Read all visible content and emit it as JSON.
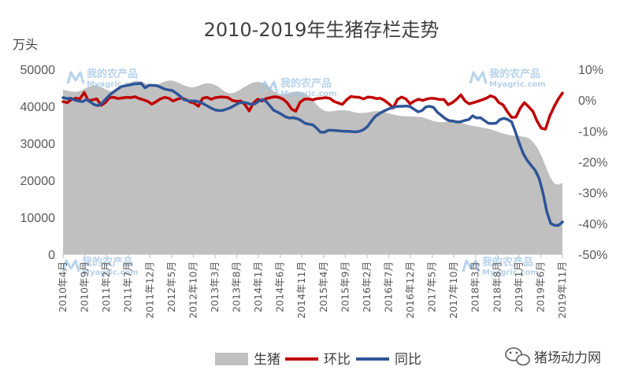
{
  "chart_data": {
    "type": "area+line",
    "title": "2010-2019年生猪存栏走势",
    "y_left_unit": "万头",
    "y_left": {
      "min": 0,
      "max": 50000,
      "ticks": [
        "0",
        "10000",
        "20000",
        "30000",
        "40000",
        "50000"
      ]
    },
    "y_right": {
      "min": -50,
      "max": 10,
      "ticks": [
        "10%",
        "0%",
        "-10%",
        "-20%",
        "-30%",
        "-40%",
        "-50%"
      ]
    },
    "x_labels": [
      "2010年4月",
      "2010年9月",
      "2011年2月",
      "2011年7月",
      "2011年12月",
      "2012年5月",
      "2012年10月",
      "2013年3月",
      "2013年8月",
      "2014年1月",
      "2014年6月",
      "2014年11月",
      "2015年4月",
      "2015年9月",
      "2016年2月",
      "2016年7月",
      "2016年12月",
      "2017年5月",
      "2017年10月",
      "2018年3月",
      "2018年8月",
      "2019年1月",
      "2019年6月",
      "2019年11月"
    ],
    "series": [
      {
        "name": "生猪",
        "axis": "left",
        "color": "#c0c0c0",
        "values": [
          44500,
          44200,
          44000,
          43900,
          44100,
          44600,
          45200,
          45600,
          45700,
          45300,
          44700,
          44200,
          44000,
          44200,
          44800,
          45500,
          46300,
          46800,
          46900,
          46600,
          46100,
          45800,
          45700,
          46000,
          46500,
          46900,
          47000,
          46700,
          46200,
          45700,
          45300,
          45100,
          45300,
          45700,
          46100,
          46200,
          46000,
          45500,
          44700,
          43900,
          43500,
          43600,
          44100,
          44800,
          45500,
          46100,
          46500,
          46600,
          46300,
          45600,
          44700,
          43800,
          43300,
          43200,
          43400,
          43800,
          44000,
          43900,
          43500,
          42800,
          41700,
          40400,
          39300,
          38700,
          38600,
          38700,
          38900,
          39000,
          38900,
          38700,
          38400,
          38200,
          38200,
          38300,
          38500,
          38700,
          38700,
          38500,
          38200,
          37900,
          37600,
          37400,
          37300,
          37300,
          37300,
          37200,
          37100,
          36800,
          36400,
          36000,
          35800,
          35700,
          35800,
          35900,
          35900,
          35700,
          35400,
          35100,
          34800,
          34600,
          34400,
          34200,
          34000,
          33700,
          33300,
          32900,
          32600,
          32300,
          32100,
          32000,
          31900,
          31700,
          31300,
          30300,
          28700,
          26500,
          23700,
          21000,
          19200,
          18800,
          19300
        ]
      },
      {
        "name": "环比",
        "axis": "right",
        "color": "#c00000",
        "values": [
          -0.5,
          -0.8,
          0.2,
          0.6,
          0.4,
          2.5,
          -0.2,
          0.1,
          0.4,
          -1.7,
          -0.8,
          0.8,
          0.9,
          0.5,
          0.7,
          0.9,
          0.8,
          1.1,
          0.5,
          0.1,
          -0.4,
          -1.3,
          -0.5,
          0.4,
          0.9,
          0.6,
          -0.3,
          0.3,
          0.7,
          0.2,
          -0.6,
          -1.0,
          -2.0,
          0.6,
          0.9,
          0.3,
          0.8,
          1.0,
          1.0,
          0.8,
          -0.1,
          -0.4,
          -0.3,
          -1.5,
          -3.5,
          -0.9,
          0.3,
          -0.3,
          0.5,
          0.8,
          1.1,
          0.9,
          0.3,
          -0.9,
          -2.9,
          -3.6,
          -0.7,
          0.3,
          0.4,
          0.1,
          0.5,
          0.6,
          0.8,
          0.6,
          -0.4,
          -0.9,
          -1.4,
          0.1,
          1.2,
          1.0,
          0.9,
          0.4,
          1.0,
          0.9,
          0.5,
          0.6,
          -0.1,
          -1.2,
          -2.5,
          0.2,
          1.0,
          0.4,
          -1.2,
          -0.3,
          0.3,
          -0.1,
          0.4,
          0.6,
          0.5,
          0.2,
          0.2,
          -1.5,
          -0.8,
          0.3,
          1.7,
          -0.3,
          -1.2,
          -0.8,
          -0.4,
          0.1,
          0.6,
          1.4,
          0.9,
          -0.8,
          -1.6,
          -3.8,
          -5.6,
          -5.5,
          -2.7,
          -0.8,
          -2.1,
          -3.6,
          -6.8,
          -9.1,
          -9.4,
          -5.2,
          -2.2,
          0.3,
          2.3
        ]
      },
      {
        "name": "同比",
        "axis": "right",
        "color": "#2f5597",
        "values": [
          0.8,
          0.5,
          0.6,
          0.0,
          -0.3,
          -0.5,
          0.2,
          -0.6,
          -1.5,
          -1.8,
          -1.0,
          0.4,
          1.7,
          2.7,
          3.6,
          4.4,
          4.7,
          4.9,
          5.2,
          5.3,
          5.5,
          4.0,
          4.8,
          4.8,
          4.7,
          4.2,
          3.6,
          3.3,
          3.1,
          2.3,
          1.3,
          0.2,
          -0.2,
          -0.3,
          -0.3,
          -0.6,
          -1.2,
          -1.9,
          -2.6,
          -3.2,
          -3.4,
          -3.3,
          -2.9,
          -2.4,
          -1.7,
          -1.0,
          -0.7,
          -0.9,
          -1.3,
          -1.3,
          -0.5,
          0.2,
          -0.4,
          -1.8,
          -3.3,
          -3.9,
          -4.6,
          -5.4,
          -5.8,
          -5.7,
          -6.0,
          -6.6,
          -7.5,
          -7.8,
          -8.0,
          -9.1,
          -10.4,
          -10.4,
          -9.8,
          -9.8,
          -9.9,
          -10.0,
          -10.1,
          -10.1,
          -10.2,
          -10.3,
          -10.1,
          -9.6,
          -8.6,
          -6.9,
          -5.3,
          -4.4,
          -3.7,
          -3.1,
          -2.6,
          -2.2,
          -2.0,
          -2.0,
          -1.9,
          -2.1,
          -3.0,
          -3.8,
          -3.4,
          -2.2,
          -2.0,
          -2.4,
          -4.0,
          -5.0,
          -6.0,
          -6.7,
          -6.8,
          -7.1,
          -7.0,
          -6.6,
          -6.3,
          -5.1,
          -5.8,
          -5.7,
          -6.6,
          -7.5,
          -7.6,
          -7.5,
          -6.3,
          -5.9,
          -6.3,
          -7.1,
          -10.5,
          -14.2,
          -17.5,
          -19.6,
          -21.2,
          -22.7,
          -25.3,
          -30.0,
          -36.2,
          -40.0,
          -40.6,
          -40.6,
          -39.5
        ]
      }
    ],
    "legend_position": "bottom",
    "grid": false
  },
  "watermark": {
    "cn": "我的农产品",
    "en": "Myagric.com"
  },
  "brand": {
    "label": "猪场动力网",
    "icon": "wechat-icon"
  }
}
